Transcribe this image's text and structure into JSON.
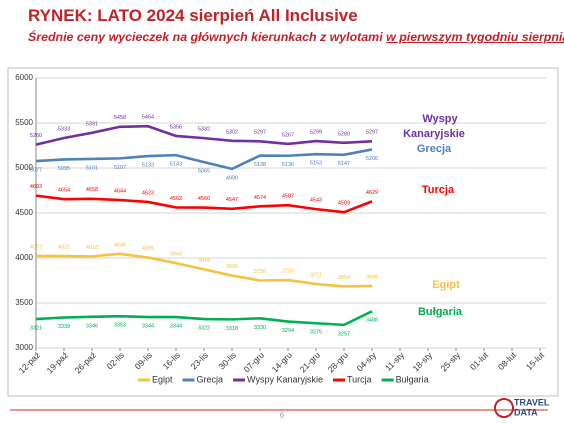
{
  "chart_data": {
    "type": "line",
    "title": "RYNEK: LATO 2024 sierpień All Inclusive",
    "subtitle": [
      "Średnie ceny wycieczek na głównych kierunkach z wylotami",
      "w pierwszym tygodniu sierpnia"
    ],
    "categories": [
      "12-paź",
      "19-paź",
      "26-paź",
      "02-lis",
      "09-lis",
      "16-lis",
      "23-lis",
      "30-lis",
      "07-gru",
      "14-gru",
      "21-gru",
      "28-gru",
      "04-sty",
      "11-sty",
      "18-sty",
      "25-sty",
      "01-lut",
      "08-lut",
      "15-lut"
    ],
    "series": [
      {
        "name": "Egipt",
        "color": "#f5c242",
        "label_position": "above",
        "values": [
          4023,
          4022,
          4018,
          4046,
          4005,
          3943,
          3874,
          3805,
          3750,
          3755,
          3711,
          3684,
          3688,
          null,
          null,
          null,
          null,
          null,
          null
        ]
      },
      {
        "name": "Grecja",
        "color": "#4f81bd",
        "label_position": "below",
        "values": [
          5077,
          5095,
          5101,
          5107,
          5133,
          5143,
          5065,
          4990,
          5138,
          5136,
          5153,
          5147,
          5206,
          null,
          null,
          null,
          null,
          null,
          null
        ]
      },
      {
        "name": "Wyspy Kanaryjskie",
        "color": "#7030a0",
        "label_position": "above",
        "values": [
          5260,
          5333,
          5391,
          5458,
          5464,
          5356,
          5332,
          5302,
          5297,
          5267,
          5299,
          5280,
          5297,
          null,
          null,
          null,
          null,
          null,
          null
        ]
      },
      {
        "name": "Turcja",
        "color": "#ff0000",
        "label_position": "above",
        "values": [
          4693,
          4654,
          4658,
          4644,
          4623,
          4562,
          4560,
          4547,
          4574,
          4587,
          4543,
          4509,
          4629,
          null,
          null,
          null,
          null,
          null,
          null
        ]
      },
      {
        "name": "Bułgaria",
        "color": "#00b050",
        "label_position": "below",
        "values": [
          3321,
          3339,
          3346,
          3353,
          3344,
          3344,
          3322,
          3318,
          3330,
          3294,
          3275,
          3257,
          3408,
          null,
          null,
          null,
          null,
          null,
          null
        ]
      }
    ],
    "annotations": [
      {
        "text": "Wyspy",
        "color": "#7030a0"
      },
      {
        "text": "Kanaryjskie",
        "color": "#7030a0"
      },
      {
        "text": "Grecja",
        "color": "#4f81bd"
      },
      {
        "text": "Turcja",
        "color": "#ff0000"
      },
      {
        "text": "Egipt",
        "color": "#f5c242"
      },
      {
        "text": "Bułgaria",
        "color": "#00b050"
      }
    ],
    "ylim": [
      3000,
      6000
    ],
    "yticks": [
      3000,
      3500,
      4000,
      4500,
      5000,
      5500,
      6000
    ],
    "grid": true,
    "legend": "bottom"
  },
  "footer": {
    "page_number": "6",
    "logo": [
      "TRAVEL",
      "DATA"
    ]
  }
}
